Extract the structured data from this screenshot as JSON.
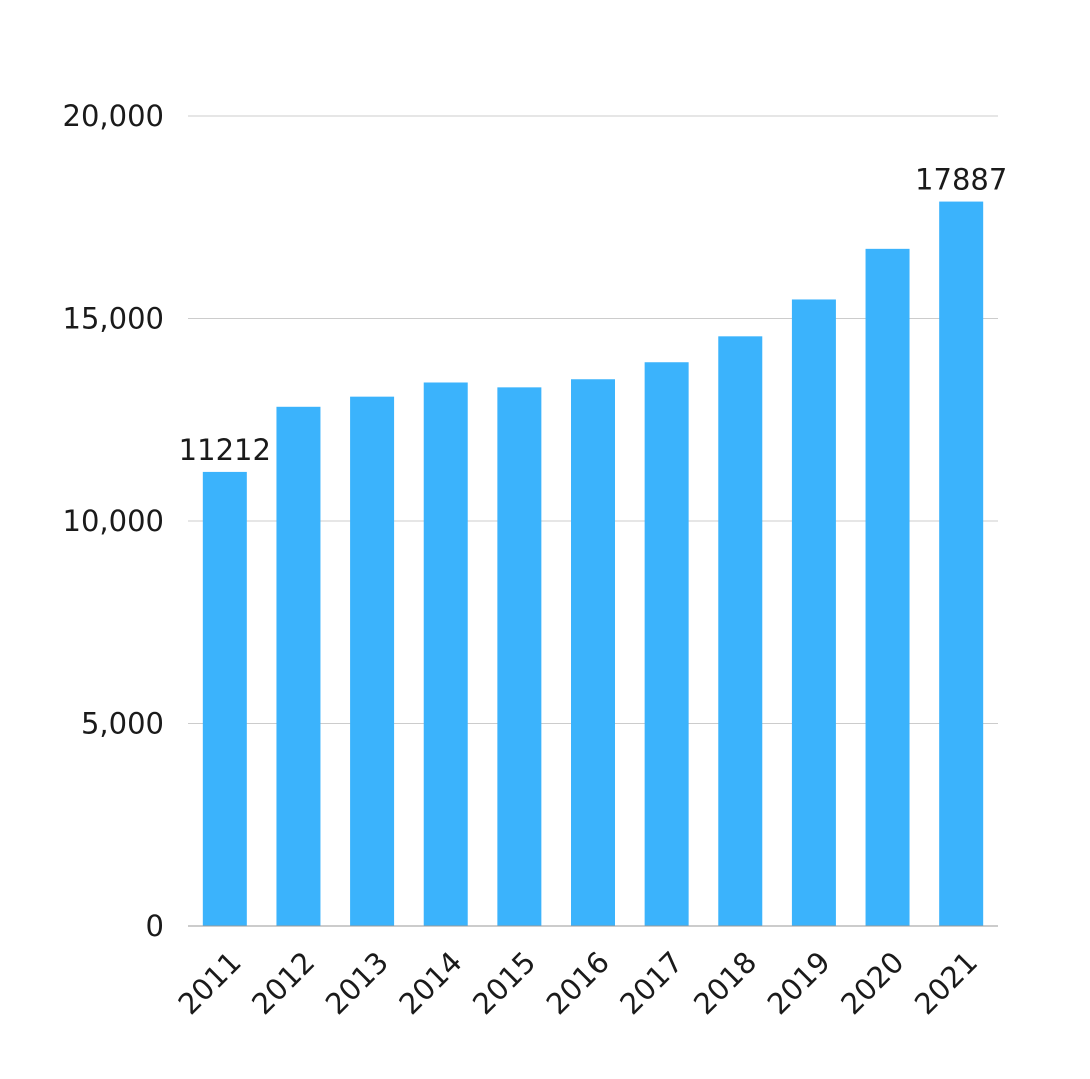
{
  "chart_data": {
    "type": "bar",
    "title": "",
    "xlabel": "",
    "ylabel": "",
    "categories": [
      "2011",
      "2012",
      "2013",
      "2014",
      "2015",
      "2016",
      "2017",
      "2018",
      "2019",
      "2020",
      "2021"
    ],
    "values": [
      11212,
      12820,
      13070,
      13420,
      13300,
      13500,
      13920,
      14560,
      15470,
      16720,
      17887
    ],
    "data_labels": [
      {
        "category": "2011",
        "text": "11212"
      },
      {
        "category": "2021",
        "text": "17887"
      }
    ],
    "ylim": [
      0,
      20000
    ],
    "yticks": [
      0,
      5000,
      10000,
      15000,
      20000
    ],
    "ytick_labels": [
      "0",
      "5,000",
      "10,000",
      "15,000",
      "20,000"
    ],
    "grid": "horizontal",
    "legend": "none",
    "x_tick_rotation": "-45deg",
    "bar_color": "#3BB3FC",
    "grid_color": "#cccccc",
    "axis_color": "#999999"
  }
}
